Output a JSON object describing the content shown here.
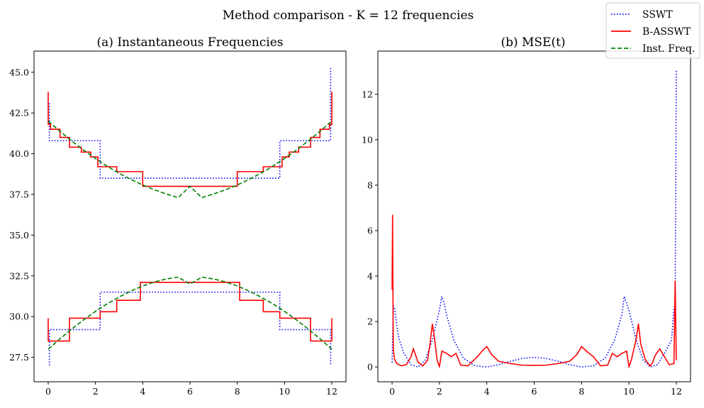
{
  "figure": {
    "suptitle": "Method comparison - K = 12 frequencies"
  },
  "legend": {
    "placement": "upper-right",
    "entries": [
      {
        "label": "SSWT",
        "color": "#0000ff",
        "style": "dotted"
      },
      {
        "label": "B-ASSWT",
        "color": "#ff0000",
        "style": "solid"
      },
      {
        "label": "Inst. Freq.",
        "color": "#008000",
        "style": "dashed"
      }
    ]
  },
  "chart_data": [
    {
      "type": "line",
      "title": "(a) Instantaneous Frequencies",
      "xlabel": "",
      "ylabel": "",
      "xlim": [
        -0.6,
        12.6
      ],
      "ylim": [
        26.0,
        46.3
      ],
      "xticks": [
        0,
        2,
        4,
        6,
        8,
        10,
        12
      ],
      "yticks": [
        27.5,
        30.0,
        32.5,
        35.0,
        37.5,
        40.0,
        42.5,
        45.0
      ],
      "ytick_labels": [
        "27.5",
        "30.0",
        "32.5",
        "35.0",
        "37.5",
        "40.0",
        "42.5",
        "45.0"
      ],
      "grid": false,
      "series": [
        {
          "name": "SSWT",
          "color": "#0000ff",
          "style": "dotted",
          "segments": [
            {
              "x": [
                0.05,
                0.05,
                2.2,
                2.2,
                9.8,
                9.8,
                11.95,
                11.95
              ],
              "y": [
                43.1,
                40.8,
                40.8,
                38.5,
                38.5,
                40.8,
                40.8,
                45.3
              ]
            },
            {
              "x": [
                0.05,
                0.05,
                2.2,
                2.2,
                9.8,
                9.8,
                11.95,
                11.95
              ],
              "y": [
                27.0,
                29.2,
                29.2,
                31.5,
                31.5,
                29.2,
                29.2,
                27.0
              ]
            }
          ]
        },
        {
          "name": "B-ASSWT",
          "color": "#ff0000",
          "style": "solid",
          "segments": [
            {
              "x": [
                0.0,
                0.0,
                0.1,
                0.1,
                0.5,
                0.5,
                0.9,
                0.9,
                1.4,
                1.4,
                1.8,
                1.8,
                2.1,
                2.1,
                2.9,
                2.9,
                4.0,
                4.0,
                8.0,
                8.0,
                9.1,
                9.1,
                9.9,
                9.9,
                10.2,
                10.2,
                10.6,
                10.6,
                11.1,
                11.1,
                11.5,
                11.5,
                11.9,
                11.9,
                12.0,
                12.0
              ],
              "y": [
                43.8,
                41.8,
                41.8,
                41.5,
                41.5,
                41.0,
                41.0,
                40.4,
                40.4,
                40.1,
                40.1,
                39.8,
                39.8,
                39.2,
                39.2,
                38.9,
                38.9,
                38.0,
                38.0,
                38.9,
                38.9,
                39.2,
                39.2,
                39.8,
                39.8,
                40.1,
                40.1,
                40.4,
                40.4,
                41.0,
                41.0,
                41.5,
                41.5,
                41.8,
                41.8,
                43.8
              ]
            },
            {
              "x": [
                0.0,
                0.0,
                0.9,
                0.9,
                2.2,
                2.2,
                2.9,
                2.9,
                3.9,
                3.9,
                8.1,
                8.1,
                9.1,
                9.1,
                9.8,
                9.8,
                11.1,
                11.1,
                12.0,
                12.0
              ],
              "y": [
                29.9,
                28.5,
                28.5,
                29.9,
                29.9,
                30.3,
                30.3,
                31.0,
                31.0,
                32.1,
                32.1,
                31.0,
                31.0,
                30.3,
                30.3,
                29.9,
                29.9,
                28.5,
                28.5,
                29.9
              ]
            }
          ]
        },
        {
          "name": "Inst. Freq.",
          "color": "#008000",
          "style": "dashed",
          "segments": [
            {
              "x": [
                0,
                0.5,
                1,
                1.5,
                2,
                2.5,
                3,
                3.5,
                4,
                4.5,
                5,
                5.5,
                6,
                6.5,
                7,
                7.5,
                8,
                8.5,
                9,
                9.5,
                10,
                10.5,
                11,
                11.5,
                12
              ],
              "y": [
                42.0,
                41.37,
                40.78,
                40.22,
                39.7,
                39.23,
                38.8,
                38.42,
                38.08,
                37.78,
                37.53,
                37.3,
                38.0,
                37.3,
                37.53,
                37.78,
                38.08,
                38.42,
                38.8,
                39.23,
                39.7,
                40.22,
                40.78,
                41.37,
                42.0
              ]
            },
            {
              "x": [
                0,
                0.5,
                1,
                1.5,
                2,
                2.5,
                3,
                3.5,
                4,
                4.5,
                5,
                5.5,
                6,
                6.5,
                7,
                7.5,
                8,
                8.5,
                9,
                9.5,
                10,
                10.5,
                11,
                11.5,
                12
              ],
              "y": [
                28.0,
                28.64,
                29.24,
                29.8,
                30.32,
                30.79,
                31.2,
                31.57,
                31.88,
                32.13,
                32.31,
                32.42,
                32.0,
                32.42,
                32.31,
                32.13,
                31.88,
                31.57,
                31.2,
                30.79,
                30.32,
                29.8,
                29.24,
                28.64,
                28.0
              ]
            }
          ]
        }
      ]
    },
    {
      "type": "line",
      "title": "(b) MSE(t)",
      "xlabel": "",
      "ylabel": "",
      "xlim": [
        -0.6,
        12.6
      ],
      "ylim": [
        -0.65,
        13.9
      ],
      "xticks": [
        0,
        2,
        4,
        6,
        8,
        10,
        12
      ],
      "yticks": [
        0,
        2,
        4,
        6,
        8,
        10,
        12
      ],
      "grid": false,
      "series": [
        {
          "name": "SSWT",
          "color": "#0000ff",
          "style": "dotted",
          "x": [
            0.0,
            0.05,
            0.1,
            0.2,
            0.3,
            0.5,
            0.8,
            1.1,
            1.4,
            1.7,
            2.0,
            2.1,
            2.2,
            2.3,
            2.6,
            3.0,
            3.5,
            4.0,
            4.5,
            5.0,
            5.5,
            6.0,
            6.5,
            7.0,
            7.5,
            8.0,
            8.5,
            9.0,
            9.4,
            9.7,
            9.8,
            9.9,
            10.0,
            10.3,
            10.6,
            10.9,
            11.2,
            11.5,
            11.8,
            11.9,
            11.95,
            12.0
          ],
          "y": [
            0.2,
            2.7,
            2.6,
            1.8,
            1.2,
            0.6,
            0.1,
            0.0,
            0.3,
            1.2,
            2.5,
            3.1,
            2.8,
            2.3,
            1.2,
            0.4,
            0.05,
            0.0,
            0.1,
            0.25,
            0.38,
            0.42,
            0.38,
            0.25,
            0.1,
            0.0,
            0.05,
            0.4,
            1.2,
            2.3,
            3.1,
            2.8,
            2.5,
            1.2,
            0.3,
            0.0,
            0.1,
            0.6,
            1.2,
            2.6,
            2.7,
            13.1
          ]
        },
        {
          "name": "B-ASSWT",
          "color": "#ff0000",
          "style": "solid",
          "x": [
            0.0,
            0.02,
            0.05,
            0.1,
            0.2,
            0.4,
            0.6,
            0.8,
            0.9,
            1.0,
            1.1,
            1.3,
            1.5,
            1.6,
            1.7,
            1.8,
            1.9,
            2.0,
            2.1,
            2.3,
            2.5,
            2.7,
            2.9,
            3.2,
            3.6,
            3.8,
            4.0,
            4.2,
            4.5,
            5.0,
            5.5,
            6.0,
            6.5,
            7.0,
            7.5,
            7.8,
            8.0,
            8.2,
            8.5,
            8.8,
            9.1,
            9.3,
            9.5,
            9.7,
            9.9,
            10.0,
            10.1,
            10.3,
            10.4,
            10.5,
            10.7,
            10.9,
            11.0,
            11.1,
            11.3,
            11.5,
            11.7,
            11.9,
            11.95,
            12.0
          ],
          "y": [
            3.4,
            6.7,
            0.8,
            0.35,
            0.15,
            0.05,
            0.1,
            0.45,
            0.8,
            0.5,
            0.2,
            0.05,
            0.3,
            1.0,
            1.9,
            1.2,
            0.3,
            0.02,
            0.7,
            0.6,
            0.45,
            0.6,
            0.08,
            0.05,
            0.45,
            0.7,
            0.9,
            0.55,
            0.25,
            0.15,
            0.08,
            0.07,
            0.08,
            0.15,
            0.25,
            0.55,
            0.9,
            0.7,
            0.45,
            0.05,
            0.08,
            0.6,
            0.45,
            0.6,
            0.7,
            0.02,
            0.3,
            1.2,
            1.9,
            1.0,
            0.3,
            0.05,
            0.2,
            0.5,
            0.8,
            0.45,
            0.1,
            0.15,
            3.8,
            0.3
          ]
        }
      ]
    }
  ]
}
